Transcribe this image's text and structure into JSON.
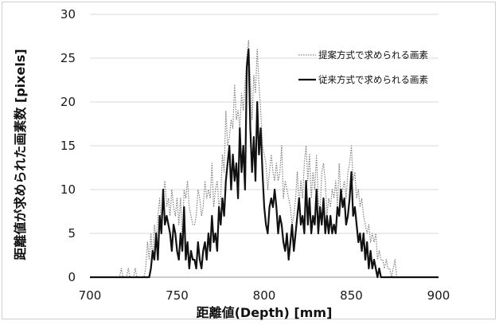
{
  "chart_data": {
    "type": "line",
    "title": "",
    "xlabel": "距離値(Depth) [mm]",
    "ylabel": "距離値が求められた画素数 [pixels]",
    "xlim": [
      700,
      900
    ],
    "ylim": [
      0,
      30
    ],
    "x_ticks": [
      "700",
      "750",
      "800",
      "850",
      "900"
    ],
    "y_ticks": [
      "0",
      "5",
      "10",
      "15",
      "20",
      "25",
      "30"
    ],
    "grid": "horizontal",
    "legend_position": "top-right",
    "series": [
      {
        "name": "提案方式で求められる画素",
        "style": "dotted",
        "color": "#808080",
        "points": [
          [
            700,
            0
          ],
          [
            717,
            0
          ],
          [
            718,
            1
          ],
          [
            719,
            0
          ],
          [
            721,
            0
          ],
          [
            722,
            1
          ],
          [
            723,
            0
          ],
          [
            725,
            0
          ],
          [
            726,
            1
          ],
          [
            727,
            0
          ],
          [
            731,
            0
          ],
          [
            732,
            1
          ],
          [
            733,
            4
          ],
          [
            734,
            2
          ],
          [
            735,
            5
          ],
          [
            736,
            2
          ],
          [
            737,
            6
          ],
          [
            738,
            4
          ],
          [
            739,
            7
          ],
          [
            740,
            9
          ],
          [
            741,
            6
          ],
          [
            742,
            9
          ],
          [
            743,
            11
          ],
          [
            744,
            8
          ],
          [
            745,
            9
          ],
          [
            746,
            7
          ],
          [
            747,
            10
          ],
          [
            748,
            8
          ],
          [
            749,
            7
          ],
          [
            750,
            9
          ],
          [
            751,
            6
          ],
          [
            752,
            9
          ],
          [
            753,
            4
          ],
          [
            754,
            10
          ],
          [
            755,
            9
          ],
          [
            756,
            11
          ],
          [
            757,
            8
          ],
          [
            758,
            7
          ],
          [
            759,
            6
          ],
          [
            760,
            6
          ],
          [
            761,
            7
          ],
          [
            762,
            10
          ],
          [
            763,
            9
          ],
          [
            764,
            7
          ],
          [
            765,
            8
          ],
          [
            766,
            11
          ],
          [
            767,
            9
          ],
          [
            768,
            10
          ],
          [
            769,
            9
          ],
          [
            770,
            13
          ],
          [
            771,
            8
          ],
          [
            772,
            10
          ],
          [
            773,
            11
          ],
          [
            774,
            8
          ],
          [
            775,
            9
          ],
          [
            776,
            14
          ],
          [
            777,
            12
          ],
          [
            778,
            19
          ],
          [
            779,
            15
          ],
          [
            780,
            16
          ],
          [
            781,
            18
          ],
          [
            782,
            17
          ],
          [
            783,
            22
          ],
          [
            784,
            18
          ],
          [
            785,
            19
          ],
          [
            786,
            17
          ],
          [
            787,
            21
          ],
          [
            788,
            19
          ],
          [
            789,
            22
          ],
          [
            790,
            25
          ],
          [
            791,
            27
          ],
          [
            792,
            23
          ],
          [
            793,
            18
          ],
          [
            794,
            23
          ],
          [
            795,
            21
          ],
          [
            796,
            26
          ],
          [
            797,
            22
          ],
          [
            798,
            19
          ],
          [
            799,
            15
          ],
          [
            800,
            14
          ],
          [
            801,
            13
          ],
          [
            802,
            10
          ],
          [
            803,
            12
          ],
          [
            804,
            14
          ],
          [
            805,
            12
          ],
          [
            806,
            11
          ],
          [
            807,
            13
          ],
          [
            808,
            11
          ],
          [
            809,
            12
          ],
          [
            810,
            15
          ],
          [
            811,
            9
          ],
          [
            812,
            11
          ],
          [
            813,
            10
          ],
          [
            814,
            9
          ],
          [
            815,
            8
          ],
          [
            816,
            6
          ],
          [
            817,
            7
          ],
          [
            818,
            9
          ],
          [
            819,
            12
          ],
          [
            820,
            8
          ],
          [
            821,
            11
          ],
          [
            822,
            9
          ],
          [
            823,
            13
          ],
          [
            824,
            15
          ],
          [
            825,
            11
          ],
          [
            826,
            14
          ],
          [
            827,
            9
          ],
          [
            828,
            12
          ],
          [
            829,
            10
          ],
          [
            830,
            14
          ],
          [
            831,
            9
          ],
          [
            832,
            7
          ],
          [
            833,
            12
          ],
          [
            834,
            13
          ],
          [
            835,
            11
          ],
          [
            836,
            7
          ],
          [
            837,
            9
          ],
          [
            838,
            8
          ],
          [
            839,
            10
          ],
          [
            840,
            9
          ],
          [
            841,
            11
          ],
          [
            842,
            8
          ],
          [
            843,
            13
          ],
          [
            844,
            9
          ],
          [
            845,
            10
          ],
          [
            846,
            11
          ],
          [
            847,
            9
          ],
          [
            848,
            12
          ],
          [
            849,
            13
          ],
          [
            850,
            15
          ],
          [
            851,
            11
          ],
          [
            852,
            12
          ],
          [
            853,
            9
          ],
          [
            854,
            10
          ],
          [
            855,
            8
          ],
          [
            856,
            9
          ],
          [
            857,
            7
          ],
          [
            858,
            6
          ],
          [
            859,
            5
          ],
          [
            860,
            6
          ],
          [
            861,
            4
          ],
          [
            862,
            5
          ],
          [
            863,
            4
          ],
          [
            864,
            5
          ],
          [
            865,
            2
          ],
          [
            866,
            3
          ],
          [
            867,
            2
          ],
          [
            868,
            2
          ],
          [
            869,
            1
          ],
          [
            870,
            2
          ],
          [
            871,
            1
          ],
          [
            872,
            1
          ],
          [
            873,
            0
          ],
          [
            874,
            1
          ],
          [
            875,
            2
          ],
          [
            876,
            0
          ],
          [
            880,
            0
          ],
          [
            900,
            0
          ]
        ]
      },
      {
        "name": "従来方式で求められる画素",
        "style": "solid",
        "color": "#111111",
        "points": [
          [
            700,
            0
          ],
          [
            734,
            0
          ],
          [
            735,
            1
          ],
          [
            736,
            3
          ],
          [
            737,
            2
          ],
          [
            738,
            5
          ],
          [
            739,
            2
          ],
          [
            740,
            7
          ],
          [
            741,
            5
          ],
          [
            742,
            10
          ],
          [
            743,
            6
          ],
          [
            744,
            7
          ],
          [
            745,
            6
          ],
          [
            746,
            5
          ],
          [
            747,
            3
          ],
          [
            748,
            6
          ],
          [
            749,
            5
          ],
          [
            750,
            3
          ],
          [
            751,
            2
          ],
          [
            752,
            5
          ],
          [
            753,
            3
          ],
          [
            754,
            8
          ],
          [
            755,
            2
          ],
          [
            756,
            4
          ],
          [
            757,
            1
          ],
          [
            758,
            3
          ],
          [
            759,
            2
          ],
          [
            760,
            2
          ],
          [
            761,
            1
          ],
          [
            762,
            4
          ],
          [
            763,
            2
          ],
          [
            764,
            1
          ],
          [
            765,
            3
          ],
          [
            766,
            4
          ],
          [
            767,
            2
          ],
          [
            768,
            5
          ],
          [
            769,
            3
          ],
          [
            770,
            7
          ],
          [
            771,
            4
          ],
          [
            772,
            5
          ],
          [
            773,
            3
          ],
          [
            774,
            8
          ],
          [
            775,
            6
          ],
          [
            776,
            9
          ],
          [
            777,
            7
          ],
          [
            778,
            11
          ],
          [
            779,
            13
          ],
          [
            780,
            15
          ],
          [
            781,
            10
          ],
          [
            782,
            14
          ],
          [
            783,
            11
          ],
          [
            784,
            13
          ],
          [
            785,
            9
          ],
          [
            786,
            17
          ],
          [
            787,
            12
          ],
          [
            788,
            15
          ],
          [
            789,
            10
          ],
          [
            790,
            24
          ],
          [
            791,
            26
          ],
          [
            792,
            17
          ],
          [
            793,
            12
          ],
          [
            794,
            16
          ],
          [
            795,
            11
          ],
          [
            796,
            20
          ],
          [
            797,
            14
          ],
          [
            798,
            17
          ],
          [
            799,
            12
          ],
          [
            800,
            8
          ],
          [
            801,
            6
          ],
          [
            802,
            5
          ],
          [
            803,
            8
          ],
          [
            804,
            9
          ],
          [
            805,
            8
          ],
          [
            806,
            10
          ],
          [
            807,
            8
          ],
          [
            808,
            5
          ],
          [
            809,
            7
          ],
          [
            810,
            6
          ],
          [
            811,
            4
          ],
          [
            812,
            3
          ],
          [
            813,
            5
          ],
          [
            814,
            2
          ],
          [
            815,
            4
          ],
          [
            816,
            6
          ],
          [
            817,
            3
          ],
          [
            818,
            5
          ],
          [
            819,
            7
          ],
          [
            820,
            9
          ],
          [
            821,
            6
          ],
          [
            822,
            7
          ],
          [
            823,
            5
          ],
          [
            824,
            11
          ],
          [
            825,
            6
          ],
          [
            826,
            9
          ],
          [
            827,
            5
          ],
          [
            828,
            7
          ],
          [
            829,
            6
          ],
          [
            830,
            10
          ],
          [
            831,
            5
          ],
          [
            832,
            8
          ],
          [
            833,
            6
          ],
          [
            834,
            9
          ],
          [
            835,
            5
          ],
          [
            836,
            7
          ],
          [
            837,
            5
          ],
          [
            838,
            7
          ],
          [
            839,
            5
          ],
          [
            840,
            6
          ],
          [
            841,
            5
          ],
          [
            842,
            8
          ],
          [
            843,
            7
          ],
          [
            844,
            10
          ],
          [
            845,
            8
          ],
          [
            846,
            9
          ],
          [
            847,
            6
          ],
          [
            848,
            7
          ],
          [
            849,
            9
          ],
          [
            850,
            12
          ],
          [
            851,
            7
          ],
          [
            852,
            8
          ],
          [
            853,
            6
          ],
          [
            854,
            4
          ],
          [
            855,
            5
          ],
          [
            856,
            3
          ],
          [
            857,
            5
          ],
          [
            858,
            2
          ],
          [
            859,
            4
          ],
          [
            860,
            1
          ],
          [
            861,
            3
          ],
          [
            862,
            1
          ],
          [
            863,
            2
          ],
          [
            864,
            1
          ],
          [
            865,
            0
          ],
          [
            866,
            1
          ],
          [
            867,
            0
          ],
          [
            900,
            0
          ]
        ]
      }
    ]
  }
}
